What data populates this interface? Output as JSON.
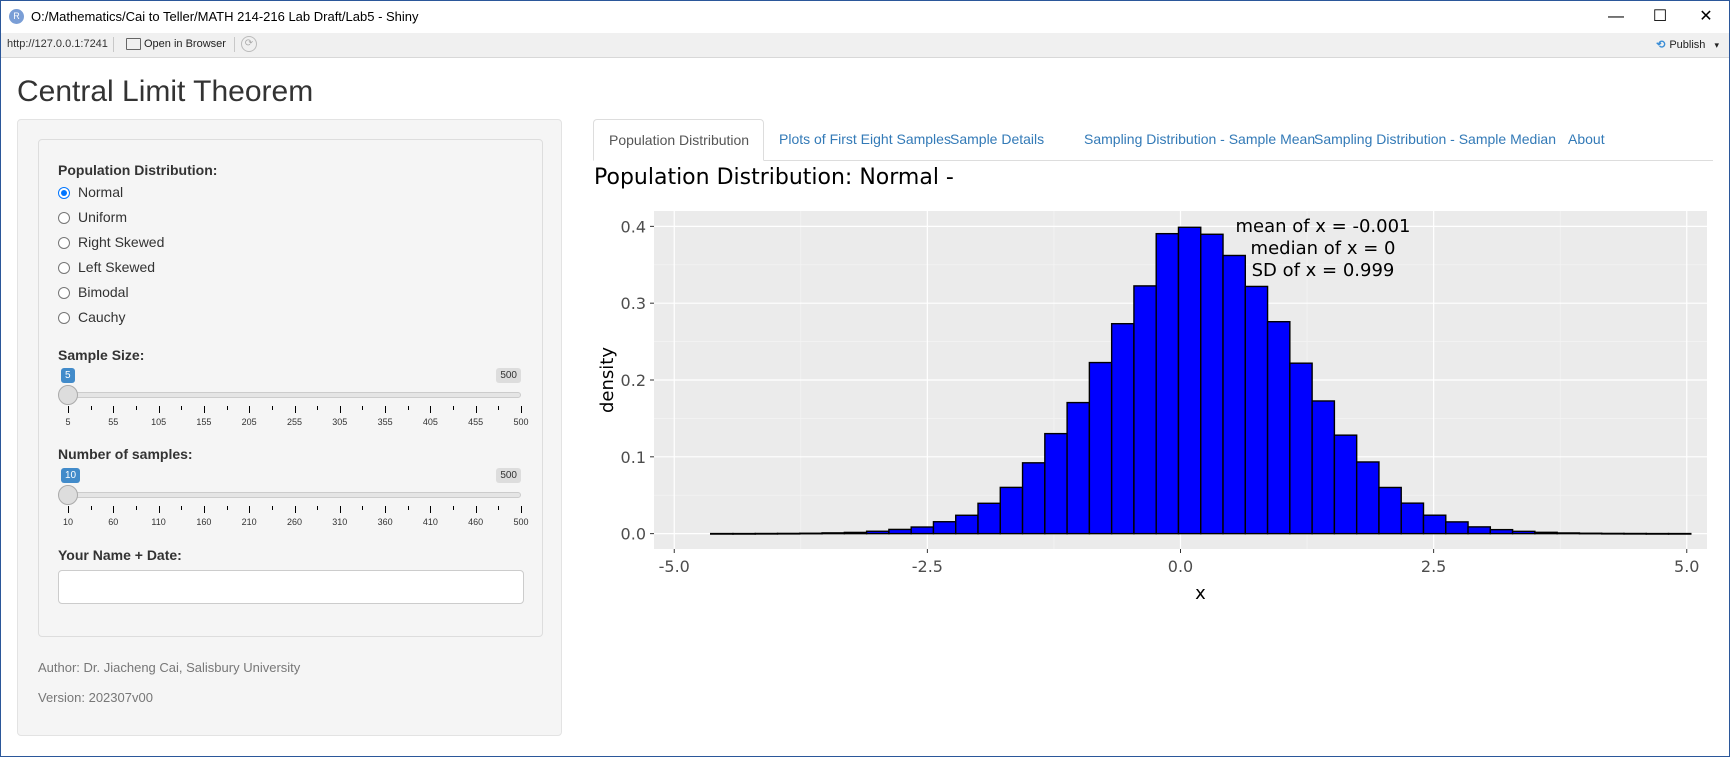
{
  "window": {
    "title": "O:/Mathematics/Cai to Teller/MATH 214-216 Lab Draft/Lab5 - Shiny",
    "app_icon": "R",
    "minimize": "—",
    "maximize": "☐",
    "close": "✕"
  },
  "toolbar": {
    "url": "http://127.0.0.1:7241",
    "open_in_browser": "Open in Browser",
    "publish": "Publish",
    "publish_caret": "▾"
  },
  "app": {
    "title": "Central Limit Theorem"
  },
  "sidebar": {
    "population_label": "Population Distribution:",
    "distributions": [
      {
        "label": "Normal",
        "checked": true
      },
      {
        "label": "Uniform",
        "checked": false
      },
      {
        "label": "Right Skewed",
        "checked": false
      },
      {
        "label": "Left Skewed",
        "checked": false
      },
      {
        "label": "Bimodal",
        "checked": false
      },
      {
        "label": "Cauchy",
        "checked": false
      }
    ],
    "sample_size": {
      "label": "Sample Size:",
      "value": "5",
      "max": "500",
      "ticks": [
        "5",
        "55",
        "105",
        "155",
        "205",
        "255",
        "305",
        "355",
        "405",
        "455",
        "500"
      ]
    },
    "num_samples": {
      "label": "Number of samples:",
      "value": "10",
      "max": "500",
      "ticks": [
        "10",
        "60",
        "110",
        "160",
        "210",
        "260",
        "310",
        "360",
        "410",
        "460",
        "500"
      ]
    },
    "name_label": "Your Name + Date:",
    "name_value": "",
    "author": "Author: Dr. Jiacheng Cai, Salisbury University",
    "version": "Version: 202307v00"
  },
  "tabs": [
    {
      "label": "Population Distribution",
      "active": true
    },
    {
      "label": "Plots of First Eight Samples",
      "active": false
    },
    {
      "label": "Sample Details",
      "active": false
    },
    {
      "label": "Sampling Distribution - Sample Mean",
      "active": false
    },
    {
      "label": "Sampling Distribution - Sample Median",
      "active": false
    },
    {
      "label": "About",
      "active": false
    }
  ],
  "chart_data": {
    "type": "bar",
    "title": "Population Distribution: Normal -",
    "xlabel": "x",
    "ylabel": "density",
    "xlim": [
      -5.2,
      5.2
    ],
    "ylim": [
      -0.02,
      0.42
    ],
    "xticks": [
      -5.0,
      -2.5,
      0.0,
      2.5,
      5.0
    ],
    "xtick_labels": [
      "-5.0",
      "-2.5",
      "0.0",
      "2.5",
      "5.0"
    ],
    "yticks": [
      0.0,
      0.1,
      0.2,
      0.3,
      0.4
    ],
    "ytick_labels": [
      "0.0",
      "0.1",
      "0.2",
      "0.3",
      "0.4"
    ],
    "bin_edges": [
      -4.64,
      -4.42,
      -4.2,
      -3.98,
      -3.76,
      -3.54,
      -3.32,
      -3.1,
      -2.88,
      -2.66,
      -2.44,
      -2.22,
      -2.0,
      -1.78,
      -1.56,
      -1.34,
      -1.12,
      -0.9,
      -0.68,
      -0.46,
      -0.24,
      -0.02,
      0.2,
      0.42,
      0.64,
      0.86,
      1.08,
      1.3,
      1.52,
      1.74,
      1.96,
      2.18,
      2.4,
      2.62,
      2.84,
      3.06,
      3.28,
      3.5,
      3.72,
      3.94,
      4.16,
      4.38,
      4.6,
      4.82,
      5.04
    ],
    "values": [
      0.0001,
      0.0001,
      0.0002,
      0.0003,
      0.0005,
      0.001,
      0.0016,
      0.0031,
      0.0055,
      0.0086,
      0.0155,
      0.0239,
      0.0395,
      0.0602,
      0.0922,
      0.1302,
      0.1706,
      0.2227,
      0.2733,
      0.3225,
      0.3905,
      0.3988,
      0.3897,
      0.3621,
      0.3218,
      0.2759,
      0.2219,
      0.1727,
      0.1282,
      0.0933,
      0.0601,
      0.0397,
      0.024,
      0.0153,
      0.0088,
      0.0052,
      0.003,
      0.0017,
      0.0009,
      0.0005,
      0.0003,
      0.0002,
      0.0001,
      0.0001
    ],
    "annotations": [
      "mean of x = -0.001",
      "median of x = 0",
      "SD of x = 0.999"
    ],
    "bar_color": "#0000ff",
    "panel_color": "#ebebeb",
    "grid": true
  }
}
